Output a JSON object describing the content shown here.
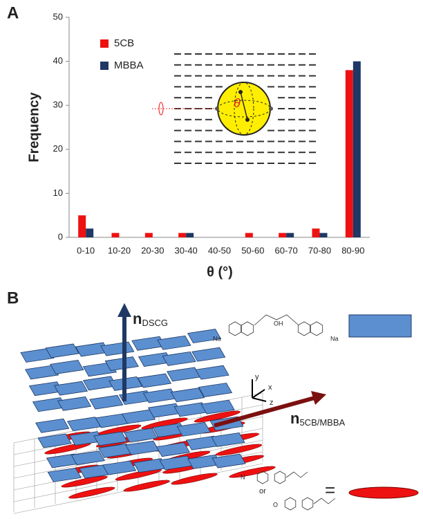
{
  "chart_data": {
    "type": "bar",
    "panel_label": "A",
    "y_label": "Frequency",
    "x_label": "θ (°)",
    "inset_label": "θ",
    "categories": [
      "0-10",
      "10-20",
      "20-30",
      "30-40",
      "40-50",
      "50-60",
      "60-70",
      "70-80",
      "80-90"
    ],
    "series": [
      {
        "name": "5CB",
        "color": "#ee1111",
        "values": [
          5,
          1,
          1,
          1,
          0,
          1,
          1,
          2,
          38
        ]
      },
      {
        "name": "MBBA",
        "color": "#1f3864",
        "values": [
          2,
          0,
          0,
          1,
          0,
          0,
          1,
          1,
          40
        ]
      }
    ],
    "ylim": [
      0,
      50
    ],
    "yticks": [
      0,
      10,
      20,
      30,
      40,
      50
    ],
    "grid": false,
    "legend": "top-left"
  },
  "diagram": {
    "panel_label": "B",
    "n_dscg": {
      "main": "n",
      "sub": "DSCG"
    },
    "n_lc": {
      "main": "n",
      "sub": "5CB/MBBA"
    },
    "axes": [
      "y",
      "x",
      "z"
    ],
    "equals": "=",
    "or": "or",
    "chem_labels": [
      "OH",
      "Na",
      "Na",
      "N",
      "O"
    ]
  }
}
